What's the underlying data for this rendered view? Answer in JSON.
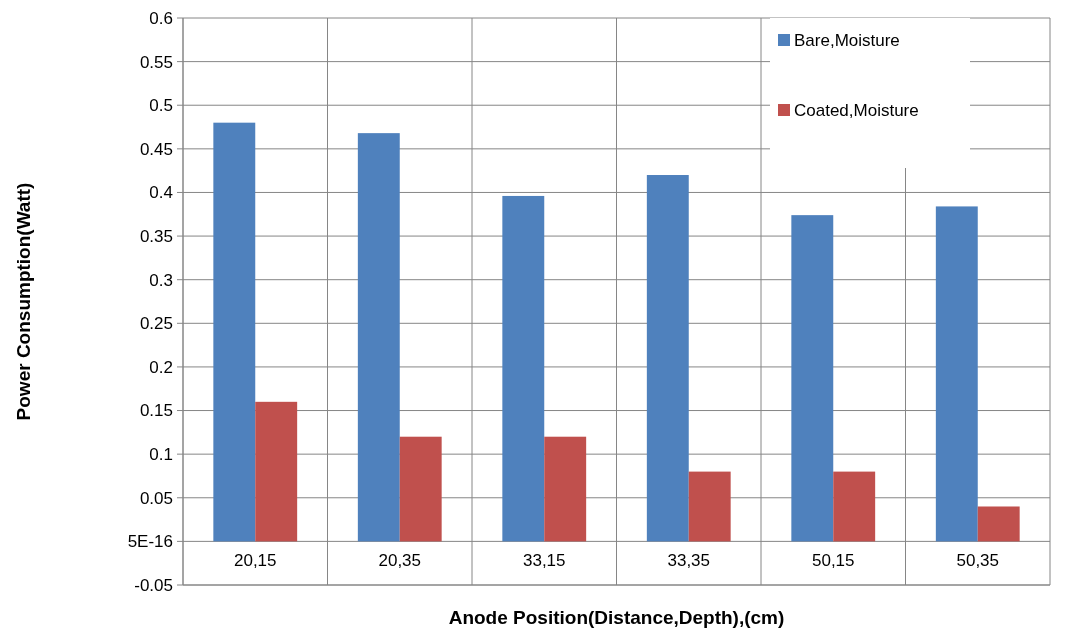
{
  "chart_data": {
    "type": "bar",
    "xlabel": "Anode Position(Distance,Depth),(cm)",
    "ylabel": "Power Consumption(Watt)",
    "categories": [
      "20,15",
      "20,35",
      "33,15",
      "33,35",
      "50,15",
      "50,35"
    ],
    "series": [
      {
        "name": "Bare,Moisture",
        "color": "#4f81bd",
        "values": [
          0.48,
          0.468,
          0.396,
          0.42,
          0.374,
          0.384
        ]
      },
      {
        "name": "Coated,Moisture",
        "color": "#c0504d",
        "values": [
          0.16,
          0.12,
          0.12,
          0.08,
          0.08,
          0.04
        ]
      }
    ],
    "ylim": [
      -0.05,
      0.6
    ],
    "yticks": [
      -0.05,
      {
        "value": 0,
        "label": "5E-16"
      },
      0.05,
      0.1,
      0.15,
      0.2,
      0.25,
      0.3,
      0.35,
      0.4,
      0.45,
      0.5,
      0.55,
      0.6
    ],
    "grid": true,
    "legend": "top right"
  }
}
